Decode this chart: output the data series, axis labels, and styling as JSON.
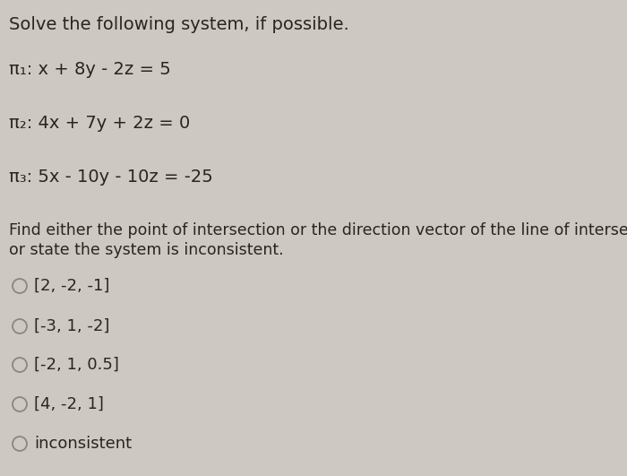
{
  "background_color": "#cdc8c2",
  "title_text": "Solve the following system, if possible.",
  "eq1": "π₁: x + 8y - 2z = 5",
  "eq2": "π₂: 4x + 7y + 2z = 0",
  "eq3": "π₃: 5x - 10y - 10z = -25",
  "instruction_line1": "Find either the point of intersection or the direction vector of the line of intersection",
  "instruction_line2": "or state the system is inconsistent.",
  "choices": [
    "[2, -2, -1]",
    "[-3, 1, -2]",
    "[-2, 1, 0.5]",
    "[4, -2, 1]",
    "inconsistent"
  ],
  "text_color": "#2a2520",
  "circle_edge_color": "#888880",
  "title_fontsize": 14,
  "eq_fontsize": 14,
  "instruction_fontsize": 12.5,
  "choice_fontsize": 13
}
